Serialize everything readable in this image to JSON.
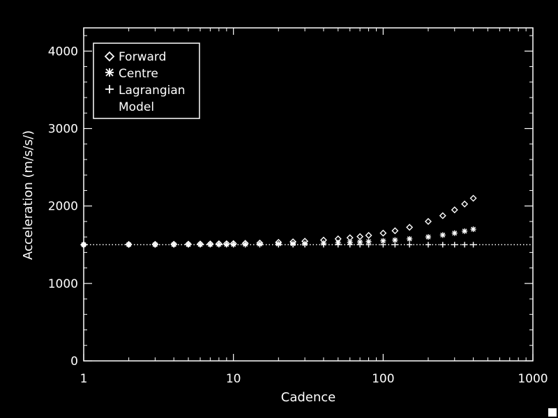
{
  "chart_data": {
    "type": "scatter",
    "title": "",
    "xlabel": "Cadence",
    "ylabel": "Acceleration (m/s/s/)",
    "xscale": "log",
    "xlim": [
      1,
      1000
    ],
    "ylim": [
      0,
      4300
    ],
    "xticks": [
      1,
      10,
      100,
      1000
    ],
    "xtick_labels": [
      "1",
      "10",
      "100",
      "1000"
    ],
    "yticks": [
      0,
      1000,
      2000,
      3000,
      4000
    ],
    "ytick_labels": [
      "0",
      "1000",
      "2000",
      "3000",
      "4000"
    ],
    "grid": false,
    "legend_position": "top-left",
    "colors": {
      "background": "#000000",
      "foreground": "#ffffff"
    },
    "series": [
      {
        "name": "Forward",
        "marker": "diamond",
        "x": [
          1,
          2,
          3,
          4,
          5,
          6,
          7,
          8,
          9,
          10,
          12,
          15,
          20,
          25,
          30,
          40,
          50,
          60,
          70,
          80,
          100,
          120,
          150,
          200,
          250,
          300,
          350,
          400
        ],
        "y": [
          1500,
          1503,
          1505,
          1506,
          1507,
          1509,
          1510,
          1512,
          1513,
          1515,
          1518,
          1522,
          1530,
          1537,
          1545,
          1560,
          1575,
          1590,
          1605,
          1620,
          1650,
          1680,
          1725,
          1800,
          1875,
          1950,
          2025,
          2100
        ]
      },
      {
        "name": "Centre",
        "marker": "asterisk",
        "x": [
          1,
          2,
          3,
          4,
          5,
          6,
          7,
          8,
          9,
          10,
          12,
          15,
          20,
          25,
          30,
          40,
          50,
          60,
          70,
          80,
          100,
          120,
          150,
          200,
          250,
          300,
          350,
          400
        ],
        "y": [
          1500,
          1501,
          1501,
          1502,
          1502,
          1503,
          1503,
          1504,
          1504,
          1505,
          1506,
          1508,
          1510,
          1512,
          1515,
          1520,
          1525,
          1530,
          1535,
          1540,
          1550,
          1560,
          1575,
          1600,
          1625,
          1650,
          1675,
          1700
        ]
      },
      {
        "name": "Lagrangian",
        "marker": "plus",
        "x": [
          1,
          2,
          3,
          4,
          5,
          6,
          7,
          8,
          9,
          10,
          12,
          15,
          20,
          25,
          30,
          40,
          50,
          60,
          70,
          80,
          100,
          120,
          150,
          200,
          250,
          300,
          350,
          400
        ],
        "y": [
          1500,
          1500,
          1500,
          1500,
          1500,
          1500,
          1500,
          1500,
          1500,
          1500,
          1500,
          1500,
          1500,
          1500,
          1500,
          1500,
          1500,
          1500,
          1500,
          1500,
          1500,
          1500,
          1500,
          1500,
          1500,
          1500,
          1500,
          1500
        ]
      },
      {
        "name": "Model",
        "marker": "dotted-line",
        "x": [
          1,
          1000
        ],
        "y": [
          1500,
          1500
        ]
      }
    ]
  }
}
